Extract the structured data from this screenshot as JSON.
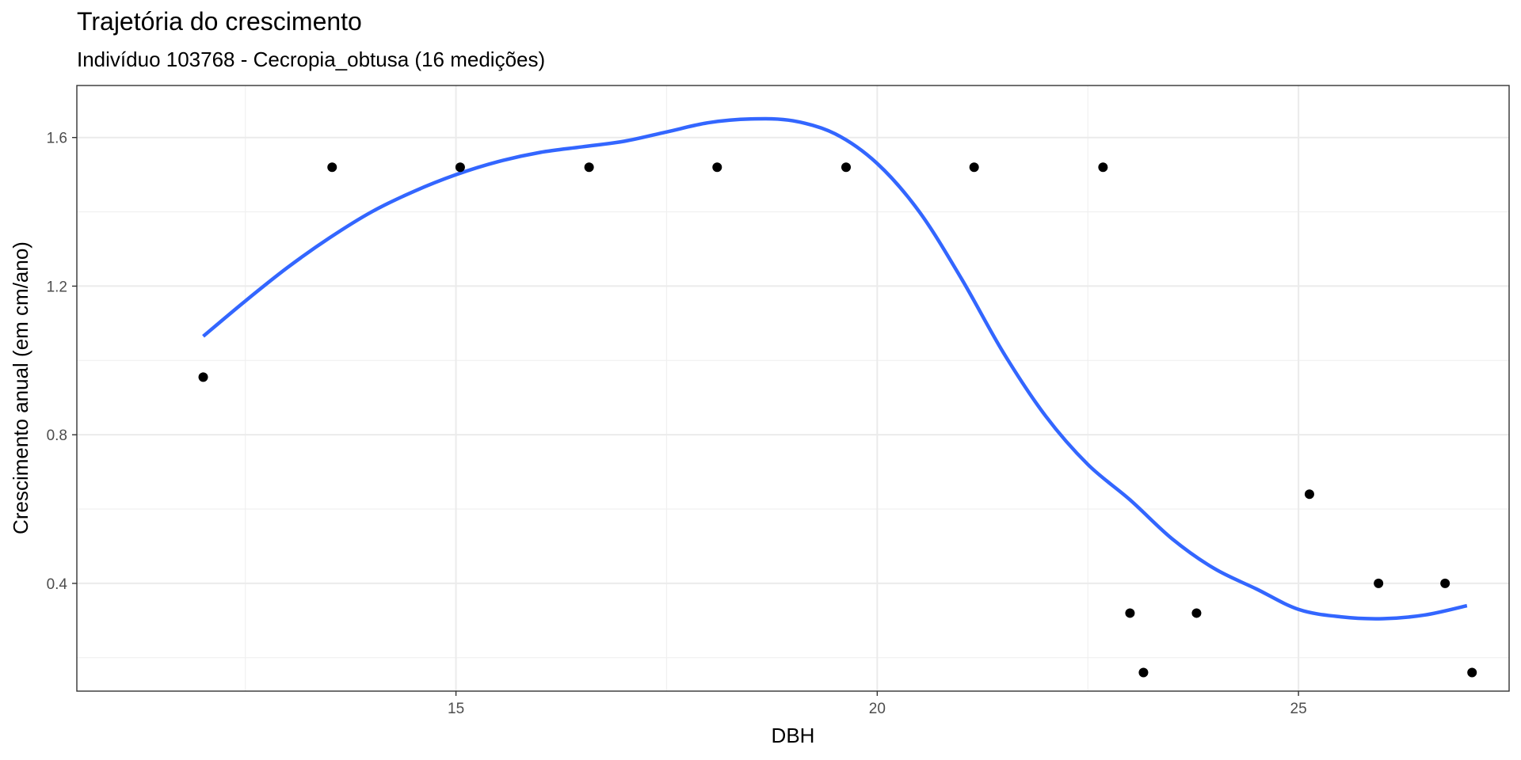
{
  "chart_data": {
    "type": "scatter",
    "title": "Trajetória do crescimento",
    "subtitle": "Indivíduo 103768 - Cecropia_obtusa (16 medições)",
    "xlabel": "DBH",
    "ylabel": "Crescimento anual (em cm/ano)",
    "xlim": [
      10.5,
      27.5
    ],
    "ylim": [
      0.11,
      1.74
    ],
    "x_ticks": [
      15,
      20,
      25
    ],
    "x_tick_labels": [
      "15",
      "20",
      "25"
    ],
    "y_ticks": [
      0.4,
      0.8,
      1.2,
      1.6
    ],
    "y_tick_labels": [
      "0.4",
      "0.8",
      "1.2",
      "1.6"
    ],
    "grid": true,
    "points": {
      "color": "#000000",
      "x": [
        12.0,
        13.53,
        15.05,
        16.58,
        18.1,
        19.63,
        21.15,
        22.68,
        23.0,
        23.16,
        23.79,
        25.13,
        25.95,
        26.74,
        27.06
      ],
      "y": [
        0.955,
        1.52,
        1.52,
        1.52,
        1.52,
        1.52,
        1.52,
        1.52,
        0.32,
        0.16,
        0.32,
        0.64,
        0.4,
        0.4,
        0.16
      ]
    },
    "smooth": {
      "color": "#3366ff",
      "x": [
        12.0,
        12.5,
        13.0,
        13.5,
        14.0,
        14.5,
        15.0,
        15.5,
        16.0,
        16.5,
        17.0,
        17.5,
        18.0,
        18.5,
        19.0,
        19.5,
        20.0,
        20.5,
        21.0,
        21.5,
        22.0,
        22.5,
        23.0,
        23.5,
        24.0,
        24.5,
        25.0,
        25.5,
        26.0,
        26.5,
        27.0
      ],
      "y": [
        1.065,
        1.16,
        1.25,
        1.33,
        1.4,
        1.455,
        1.5,
        1.535,
        1.56,
        1.575,
        1.59,
        1.615,
        1.64,
        1.65,
        1.645,
        1.61,
        1.53,
        1.4,
        1.22,
        1.02,
        0.85,
        0.72,
        0.625,
        0.52,
        0.44,
        0.385,
        0.33,
        0.31,
        0.305,
        0.315,
        0.34
      ]
    }
  }
}
